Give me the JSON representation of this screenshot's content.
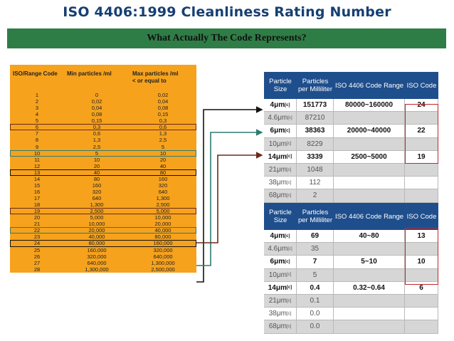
{
  "title": "ISO 4406:1999 Cleanliness Rating Number",
  "subtitle": "What Actually The Code Represents?",
  "iso_table": {
    "headers": [
      "ISO/Range Code",
      "Min particles /ml",
      "Max particles /ml\n< or equal to"
    ],
    "rows": [
      [
        "1",
        "0",
        "0,02"
      ],
      [
        "2",
        "0,02",
        "0,04"
      ],
      [
        "3",
        "0,04",
        "0,08"
      ],
      [
        "4",
        "0,08",
        "0,15"
      ],
      [
        "5",
        "0,15",
        "0,3"
      ],
      [
        "6",
        "0,3",
        "0,6"
      ],
      [
        "7",
        "0,6",
        "1,3"
      ],
      [
        "8",
        "1,3",
        "2,5"
      ],
      [
        "9",
        "2,5",
        "5"
      ],
      [
        "10",
        "5",
        "10"
      ],
      [
        "11",
        "10",
        "20"
      ],
      [
        "12",
        "20",
        "40"
      ],
      [
        "13",
        "40",
        "80"
      ],
      [
        "14",
        "80",
        "160"
      ],
      [
        "15",
        "160",
        "320"
      ],
      [
        "16",
        "320",
        "640"
      ],
      [
        "17",
        "640",
        "1,300"
      ],
      [
        "18",
        "1,300",
        "2,500"
      ],
      [
        "19",
        "2,500",
        "5,000"
      ],
      [
        "20",
        "5,000",
        "10,000"
      ],
      [
        "21",
        "10,000",
        "20,000"
      ],
      [
        "22",
        "20,000",
        "40,000"
      ],
      [
        "23",
        "40,000",
        "80,000"
      ],
      [
        "24",
        "80,000",
        "160,000"
      ],
      [
        "25",
        "160,000",
        "320,000"
      ],
      [
        "26",
        "320,000",
        "640,000"
      ],
      [
        "27",
        "640,000",
        "1,300,000"
      ],
      [
        "28",
        "1,300,000",
        "2,500,000"
      ]
    ]
  },
  "table1": {
    "headers": [
      "Particle Size",
      "Particles per Milliliter",
      "ISO 4406 Code Range",
      "ISO Code"
    ],
    "rows": [
      {
        "size": "4μm",
        "sub": "[c]",
        "count": "151773",
        "range": "80000~160000",
        "code": "24",
        "bold": true
      },
      {
        "size": "4.6μm",
        "sub": "[c]",
        "count": "87210",
        "range": "",
        "code": "",
        "bold": false
      },
      {
        "size": "6μm",
        "sub": "[c]",
        "count": "38363",
        "range": "20000~40000",
        "code": "22",
        "bold": true
      },
      {
        "size": "10μm",
        "sub": "[c]",
        "count": "8229",
        "range": "",
        "code": "",
        "bold": false
      },
      {
        "size": "14μm",
        "sub": "[c]",
        "count": "3339",
        "range": "2500~5000",
        "code": "19",
        "bold": true
      },
      {
        "size": "21μm",
        "sub": "[c]",
        "count": "1048",
        "range": "",
        "code": "",
        "bold": false
      },
      {
        "size": "38μm",
        "sub": "[c]",
        "count": "112",
        "range": "",
        "code": "",
        "bold": false
      },
      {
        "size": "68μm",
        "sub": "[c]",
        "count": "2",
        "range": "",
        "code": "",
        "bold": false
      }
    ]
  },
  "table2": {
    "headers": [
      "Particle Size",
      "Particles per Milliliter",
      "ISO 4406 Code Range",
      "ISO Code"
    ],
    "rows": [
      {
        "size": "4μm",
        "sub": "[c]",
        "count": "69",
        "range": "40~80",
        "code": "13",
        "bold": true
      },
      {
        "size": "4.6μm",
        "sub": "[c]",
        "count": "35",
        "range": "",
        "code": "",
        "bold": false
      },
      {
        "size": "6μm",
        "sub": "[c]",
        "count": "7",
        "range": "5~10",
        "code": "10",
        "bold": true
      },
      {
        "size": "10μm",
        "sub": "[c]",
        "count": "5",
        "range": "",
        "code": "",
        "bold": false
      },
      {
        "size": "14μm",
        "sub": "[c]",
        "count": "0.4",
        "range": "0.32~0.64",
        "code": "6",
        "bold": true
      },
      {
        "size": "21μm",
        "sub": "[c]",
        "count": "0.1",
        "range": "",
        "code": "",
        "bold": false
      },
      {
        "size": "38μm",
        "sub": "[c]",
        "count": "0.0",
        "range": "",
        "code": "",
        "bold": false
      },
      {
        "size": "68μm",
        "sub": "[c]",
        "count": "0.0",
        "range": "",
        "code": "",
        "bold": false
      }
    ]
  },
  "colors": {
    "title": "#163f73",
    "subtitle_bg": "#2f7d46",
    "iso_table_bg": "#f6a21d",
    "header_bg": "#1f4e8c",
    "highlight_red": "#c0272d",
    "arrow_black": "#111111",
    "arrow_teal": "#2e7c72",
    "arrow_brown": "#6b2a1c"
  }
}
